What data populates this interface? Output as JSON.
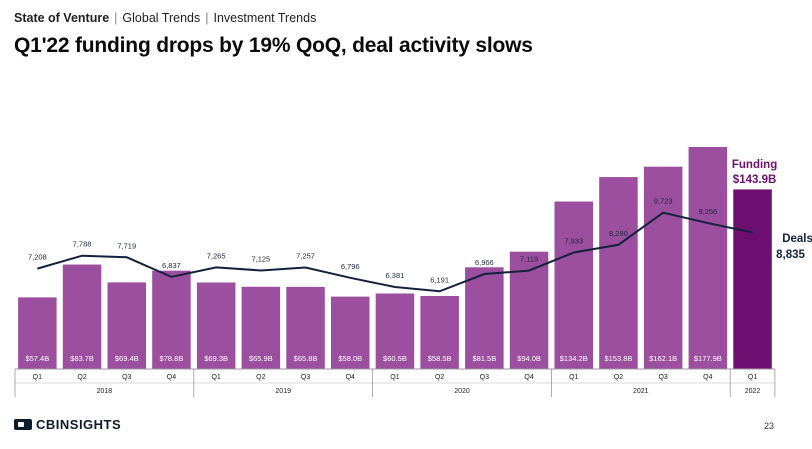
{
  "header": {
    "breadcrumb": [
      "State of Venture",
      "Global Trends",
      "Investment Trends"
    ],
    "title": "Q1'22 funding drops by 19% QoQ, deal activity slows"
  },
  "footer": {
    "logo_text": "CBINSIGHTS",
    "page_number": "23"
  },
  "colors": {
    "bar": "#9b4f9e",
    "bar_highlight": "#6c0f70",
    "line": "#14213d",
    "axis": "#9a9a9a"
  },
  "chart_data": {
    "type": "bar",
    "categories": [
      "Q1",
      "Q2",
      "Q3",
      "Q4",
      "Q1",
      "Q2",
      "Q3",
      "Q4",
      "Q1",
      "Q2",
      "Q3",
      "Q4",
      "Q1",
      "Q2",
      "Q3",
      "Q4",
      "Q1"
    ],
    "years": [
      {
        "label": "2018",
        "count": 4
      },
      {
        "label": "2019",
        "count": 4
      },
      {
        "label": "2020",
        "count": 4
      },
      {
        "label": "2021",
        "count": 4
      },
      {
        "label": "2022",
        "count": 1
      }
    ],
    "series": [
      {
        "name": "Funding",
        "type": "bar",
        "values": [
          57.4,
          83.7,
          69.4,
          78.8,
          69.3,
          65.9,
          65.8,
          58.0,
          60.5,
          58.5,
          81.5,
          94.0,
          134.2,
          153.8,
          162.1,
          177.9,
          143.9
        ],
        "labels": [
          "$57.4B",
          "$83.7B",
          "$69.4B",
          "$78.8B",
          "$69.3B",
          "$65.9B",
          "$65.8B",
          "$58.0B",
          "$60.5B",
          "$58.5B",
          "$81.5B",
          "$94.0B",
          "$134.2B",
          "$153.8B",
          "$162.1B",
          "$177.9B",
          ""
        ]
      },
      {
        "name": "Deals",
        "type": "line",
        "values": [
          7208,
          7788,
          7719,
          6837,
          7265,
          7125,
          7257,
          6796,
          6381,
          6191,
          6966,
          7119,
          7933,
          8280,
          9723,
          9256,
          8835
        ],
        "labels": [
          "7,208",
          "7,788",
          "7,719",
          "6,837",
          "7,265",
          "7,125",
          "7,257",
          "6,796",
          "6,381",
          "6,191",
          "6,966",
          "7,119",
          "7,933",
          "8,280",
          "9,723",
          "9,256",
          ""
        ]
      }
    ],
    "highlight_index": 16,
    "callouts": {
      "funding_label": "Funding",
      "funding_value": "$143.9B",
      "deals_label": "Deals",
      "deals_value": "8,835"
    },
    "bar_ylim": [
      0,
      200
    ],
    "line_ylim": [
      0,
      16000
    ],
    "grid": false
  }
}
